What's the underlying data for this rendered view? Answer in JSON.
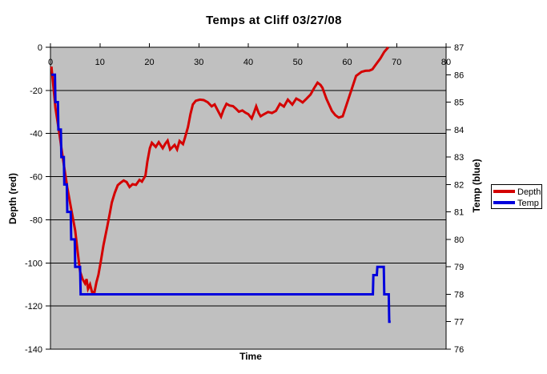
{
  "chart_data": {
    "type": "line",
    "title": "Temps at Cliff 03/27/08",
    "grid": "horizontal",
    "plot_bg": "#c0c0c0",
    "grid_color": "#000000",
    "x_axis": {
      "label": "Time",
      "min": 0,
      "max": 80,
      "tick_interval": 10,
      "ticks": [
        0,
        10,
        20,
        30,
        40,
        50,
        60,
        70,
        80
      ]
    },
    "y_left": {
      "label": "Depth (red)",
      "min": -140,
      "max": 0,
      "tick_interval": 20,
      "ticks": [
        0,
        -20,
        -40,
        -60,
        -80,
        -100,
        -120,
        -140
      ]
    },
    "y_right": {
      "label": "Temp (blue)",
      "min": 76,
      "max": 87,
      "tick_interval": 1,
      "ticks": [
        87,
        86,
        85,
        84,
        83,
        82,
        81,
        80,
        79,
        78,
        77,
        76
      ]
    },
    "legend": {
      "position": "right",
      "entries": [
        "Depth",
        "Temp"
      ]
    },
    "series": [
      {
        "name": "Depth",
        "axis": "left",
        "color": "#d40000",
        "points": [
          [
            0.2,
            -9
          ],
          [
            0.5,
            -16
          ],
          [
            1,
            -28
          ],
          [
            1.8,
            -40
          ],
          [
            2.6,
            -53
          ],
          [
            3.4,
            -65
          ],
          [
            4.2,
            -75
          ],
          [
            5,
            -85
          ],
          [
            5.5,
            -95
          ],
          [
            6,
            -104
          ],
          [
            6.5,
            -107.5
          ],
          [
            7,
            -109.5
          ],
          [
            7.3,
            -107.5
          ],
          [
            7.6,
            -112
          ],
          [
            8,
            -110
          ],
          [
            8.4,
            -113.5
          ],
          [
            8.9,
            -113.5
          ],
          [
            9.3,
            -109
          ],
          [
            9.7,
            -105.5
          ],
          [
            10.2,
            -99
          ],
          [
            10.7,
            -92
          ],
          [
            11.5,
            -83
          ],
          [
            12,
            -77
          ],
          [
            12.4,
            -72
          ],
          [
            13,
            -67.5
          ],
          [
            13.6,
            -64
          ],
          [
            14.2,
            -62.8
          ],
          [
            14.8,
            -61.8
          ],
          [
            15.4,
            -62.5
          ],
          [
            16,
            -64.8
          ],
          [
            16.6,
            -63.5
          ],
          [
            17.3,
            -63.8
          ],
          [
            18,
            -61.5
          ],
          [
            18.5,
            -62.3
          ],
          [
            19.2,
            -59.5
          ],
          [
            19.6,
            -53
          ],
          [
            20.1,
            -46.8
          ],
          [
            20.5,
            -44.3
          ],
          [
            21.3,
            -46.2
          ],
          [
            21.9,
            -44
          ],
          [
            22.7,
            -46.8
          ],
          [
            23.2,
            -44.8
          ],
          [
            23.7,
            -43.3
          ],
          [
            24.2,
            -47.4
          ],
          [
            25.1,
            -45.3
          ],
          [
            25.6,
            -47.4
          ],
          [
            26.1,
            -43.5
          ],
          [
            26.8,
            -44.9
          ],
          [
            27.2,
            -41.9
          ],
          [
            27.8,
            -37
          ],
          [
            28.3,
            -31
          ],
          [
            28.8,
            -26.5
          ],
          [
            29.4,
            -24.8
          ],
          [
            30.2,
            -24.3
          ],
          [
            31,
            -24.5
          ],
          [
            31.8,
            -25.5
          ],
          [
            32.6,
            -27.4
          ],
          [
            33.2,
            -26.5
          ],
          [
            34,
            -30
          ],
          [
            34.5,
            -32.2
          ],
          [
            35,
            -29
          ],
          [
            35.6,
            -26.2
          ],
          [
            36.2,
            -27
          ],
          [
            36.9,
            -27.3
          ],
          [
            37.5,
            -28.5
          ],
          [
            38.1,
            -29.9
          ],
          [
            38.8,
            -29.3
          ],
          [
            39.4,
            -30.3
          ],
          [
            40,
            -31
          ],
          [
            40.7,
            -33
          ],
          [
            41.2,
            -30
          ],
          [
            41.6,
            -27.4
          ],
          [
            42.1,
            -30.5
          ],
          [
            42.5,
            -32
          ],
          [
            43.2,
            -31
          ],
          [
            44,
            -30
          ],
          [
            44.8,
            -30.5
          ],
          [
            45.6,
            -29.5
          ],
          [
            46.4,
            -26.2
          ],
          [
            47.2,
            -27.5
          ],
          [
            48,
            -24.3
          ],
          [
            48.9,
            -26.6
          ],
          [
            49.7,
            -23.8
          ],
          [
            50.3,
            -24.5
          ],
          [
            51,
            -25.6
          ],
          [
            51.8,
            -23.8
          ],
          [
            52.6,
            -21.9
          ],
          [
            53.3,
            -19
          ],
          [
            54,
            -16.4
          ],
          [
            54.6,
            -17.5
          ],
          [
            55,
            -18.8
          ],
          [
            55.8,
            -23.9
          ],
          [
            56.9,
            -29.5
          ],
          [
            57.6,
            -31.5
          ],
          [
            58.3,
            -32.6
          ],
          [
            59.1,
            -32
          ],
          [
            60.2,
            -24.4
          ],
          [
            61,
            -18.8
          ],
          [
            61.8,
            -13.3
          ],
          [
            62.9,
            -11.4
          ],
          [
            63.7,
            -10.9
          ],
          [
            64.5,
            -10.8
          ],
          [
            65.1,
            -10.2
          ],
          [
            65.9,
            -7.7
          ],
          [
            66.7,
            -5.2
          ],
          [
            67.5,
            -2.1
          ],
          [
            68.3,
            0
          ]
        ]
      },
      {
        "name": "Temp",
        "axis": "right",
        "color": "#0000dd",
        "points": [
          [
            0.2,
            86
          ],
          [
            0.9,
            86
          ],
          [
            1,
            85
          ],
          [
            1.5,
            85
          ],
          [
            1.6,
            84
          ],
          [
            2.1,
            84
          ],
          [
            2.2,
            83
          ],
          [
            2.7,
            83
          ],
          [
            2.8,
            82
          ],
          [
            3.3,
            82
          ],
          [
            3.4,
            81
          ],
          [
            4.1,
            81
          ],
          [
            4.2,
            80
          ],
          [
            4.9,
            80
          ],
          [
            5,
            79
          ],
          [
            6,
            79
          ],
          [
            6.1,
            78
          ],
          [
            65.2,
            78
          ],
          [
            65.3,
            78.7
          ],
          [
            66,
            78.7
          ],
          [
            66.1,
            79
          ],
          [
            67.4,
            79
          ],
          [
            67.5,
            78
          ],
          [
            68.4,
            78
          ],
          [
            68.5,
            77
          ],
          [
            68.8,
            77
          ]
        ]
      }
    ]
  }
}
